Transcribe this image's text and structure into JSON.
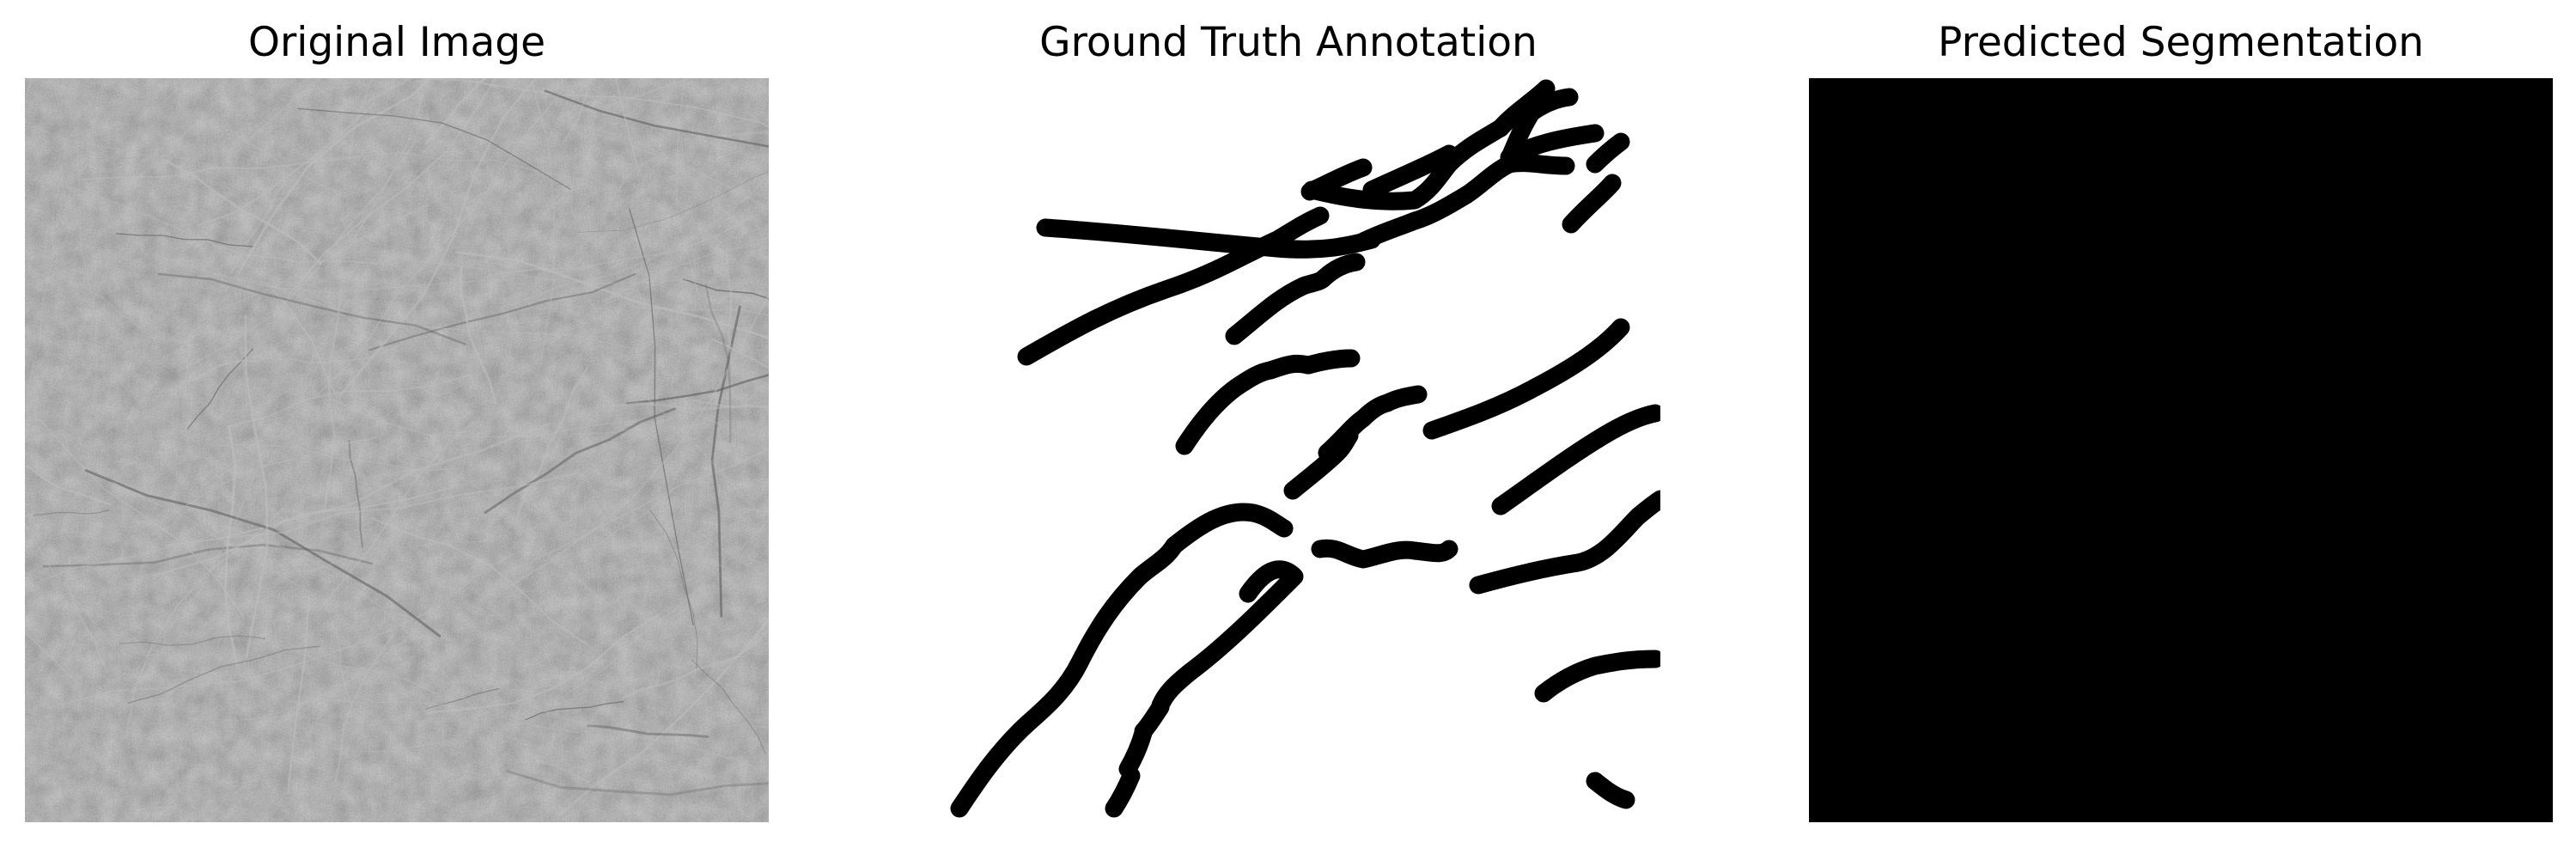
{
  "panels": [
    {
      "title": "Original Image"
    },
    {
      "title": "Ground Truth Annotation"
    },
    {
      "title": "Predicted Segmentation"
    }
  ],
  "colors": {
    "texture_base": "#7b7b7b",
    "texture_dark": "#5f5f5f",
    "texture_light": "#bdbdbd",
    "mask_background": "#ffffff",
    "mask_foreground": "#000000",
    "prediction_fill": "#000000"
  }
}
